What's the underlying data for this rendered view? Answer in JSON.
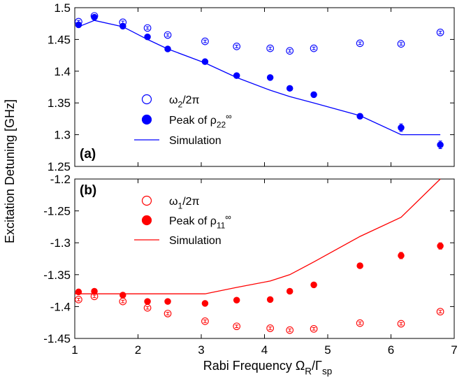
{
  "figure": {
    "ylabel": "Excitation Detuning [GHz]",
    "xlabel": "Rabi Frequency Ω_R/Γ_sp"
  },
  "chart_data": [
    {
      "panel": "top",
      "type": "scatter",
      "panel_label": "(a)",
      "xlim": [
        1,
        7
      ],
      "ylim": [
        1.25,
        1.5
      ],
      "yticks": [
        "1.25",
        "1.3",
        "1.35",
        "1.4",
        "1.45",
        "1.5"
      ],
      "color": "#0000ff",
      "legend_position": "center-left",
      "series": [
        {
          "name": "ω_2/2π",
          "marker": "open-circle",
          "x": [
            1.06,
            1.31,
            1.76,
            2.15,
            2.47,
            3.06,
            3.56,
            4.09,
            4.4,
            4.78,
            5.51,
            6.16,
            6.78
          ],
          "y": [
            1.478,
            1.487,
            1.477,
            1.468,
            1.457,
            1.447,
            1.439,
            1.436,
            1.432,
            1.436,
            1.444,
            1.443,
            1.461
          ],
          "err": [
            0.002,
            0.002,
            0.002,
            0.002,
            0.002,
            0.002,
            0.002,
            0.002,
            0.002,
            0.002,
            0.002,
            0.002,
            0.002
          ]
        },
        {
          "name": "Peak of ρ_22^∞",
          "marker": "filled-circle",
          "x": [
            1.06,
            1.31,
            1.76,
            2.15,
            2.47,
            3.06,
            3.56,
            4.09,
            4.4,
            4.78,
            5.51,
            6.16,
            6.78
          ],
          "y": [
            1.473,
            1.485,
            1.471,
            1.454,
            1.435,
            1.415,
            1.393,
            1.39,
            1.373,
            1.363,
            1.329,
            1.311,
            1.284
          ],
          "err": [
            0.0,
            0.0,
            0.0,
            0.0,
            0.0,
            0.0,
            0.0,
            0.0,
            0.0,
            0.004,
            0.004,
            0.006,
            0.006
          ]
        },
        {
          "name": "Simulation",
          "marker": "line",
          "x": [
            1.06,
            1.31,
            1.76,
            2.15,
            2.47,
            3.06,
            3.56,
            4.09,
            4.4,
            4.78,
            5.51,
            6.16,
            6.78
          ],
          "y": [
            1.47,
            1.48,
            1.47,
            1.45,
            1.435,
            1.413,
            1.39,
            1.37,
            1.36,
            1.35,
            1.33,
            1.3,
            1.3
          ]
        }
      ]
    },
    {
      "panel": "bottom",
      "type": "scatter",
      "panel_label": "(b)",
      "xlim": [
        1,
        7
      ],
      "ylim": [
        -1.45,
        -1.2
      ],
      "yticks": [
        "-1.45",
        "-1.4",
        "-1.35",
        "-1.3",
        "-1.25",
        "-1.2"
      ],
      "xticks": [
        "1",
        "2",
        "3",
        "4",
        "5",
        "6",
        "7"
      ],
      "color": "#ff0000",
      "legend_position": "top-left",
      "series": [
        {
          "name": "ω_1/2π",
          "marker": "open-circle",
          "x": [
            1.06,
            1.31,
            1.76,
            2.15,
            2.47,
            3.06,
            3.56,
            4.09,
            4.4,
            4.78,
            5.51,
            6.16,
            6.78
          ],
          "y": [
            -1.389,
            -1.384,
            -1.392,
            -1.402,
            -1.411,
            -1.423,
            -1.431,
            -1.434,
            -1.437,
            -1.435,
            -1.426,
            -1.427,
            -1.408
          ],
          "err": [
            0.002,
            0.002,
            0.002,
            0.002,
            0.002,
            0.002,
            0.002,
            0.002,
            0.002,
            0.002,
            0.002,
            0.002,
            0.002
          ]
        },
        {
          "name": "Peak of ρ_11^∞",
          "marker": "filled-circle",
          "x": [
            1.06,
            1.31,
            1.76,
            2.15,
            2.47,
            3.06,
            3.56,
            4.09,
            4.4,
            4.78,
            5.51,
            6.16,
            6.78
          ],
          "y": [
            -1.377,
            -1.376,
            -1.382,
            -1.392,
            -1.392,
            -1.395,
            -1.39,
            -1.389,
            -1.376,
            -1.366,
            -1.336,
            -1.32,
            -1.305
          ],
          "err": [
            0.0,
            0.0,
            0.0,
            0.0,
            0.0,
            0.0,
            0.0,
            0.0,
            0.0,
            0.0,
            0.0,
            0.005,
            0.005
          ]
        },
        {
          "name": "Simulation",
          "marker": "line",
          "x": [
            1.0,
            1.31,
            1.76,
            2.15,
            2.47,
            3.06,
            3.56,
            4.09,
            4.4,
            4.78,
            5.51,
            6.16,
            6.78
          ],
          "y": [
            -1.38,
            -1.38,
            -1.38,
            -1.38,
            -1.38,
            -1.38,
            -1.37,
            -1.36,
            -1.35,
            -1.33,
            -1.29,
            -1.26,
            -1.2
          ]
        }
      ]
    }
  ]
}
